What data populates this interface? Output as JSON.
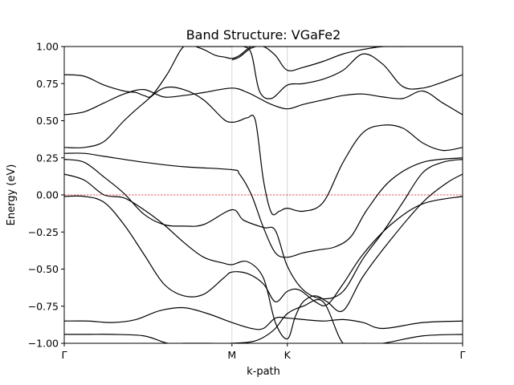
{
  "chart_data": {
    "type": "line",
    "title": "Band Structure: VGaFe2",
    "xlabel": "k-path",
    "ylabel": "Energy (eV)",
    "xlim": [
      0,
      1
    ],
    "ylim": [
      -1.0,
      1.0
    ],
    "yticks": [
      -1.0,
      -0.75,
      -0.5,
      -0.25,
      0.0,
      0.25,
      0.5,
      0.75,
      1.0
    ],
    "ytick_labels": [
      "−1.00",
      "−0.75",
      "−0.50",
      "−0.25",
      "0.00",
      "0.25",
      "0.50",
      "0.75",
      "1.00"
    ],
    "kpoints": [
      {
        "label": "Γ",
        "x": 0.0
      },
      {
        "label": "M",
        "x": 0.421
      },
      {
        "label": "K",
        "x": 0.56
      },
      {
        "label": "Γ",
        "x": 1.0
      }
    ],
    "fermi_level": 0.0,
    "series": [
      {
        "x": [
          0,
          0.06,
          0.12,
          0.2,
          0.26,
          0.3,
          0.36,
          0.421,
          0.47,
          0.5,
          0.53,
          0.56,
          0.6,
          0.65,
          0.7,
          0.75,
          0.8,
          0.9,
          1
        ],
        "values": [
          -0.94,
          -0.94,
          -0.94,
          -0.95,
          -1.0,
          -1.0,
          -1.0,
          -1.0,
          -0.99,
          -0.96,
          -0.9,
          -0.8,
          -0.75,
          -0.72,
          -1.0,
          -1.0,
          -1.0,
          -0.95,
          -0.94
        ]
      },
      {
        "x": [
          0,
          0.06,
          0.12,
          0.18,
          0.24,
          0.3,
          0.36,
          0.421,
          0.47,
          0.5,
          0.53,
          0.56,
          0.6,
          0.65,
          0.7,
          0.75,
          0.8,
          0.9,
          1
        ],
        "values": [
          -0.85,
          -0.85,
          -0.86,
          -0.84,
          -0.78,
          -0.76,
          -0.8,
          -0.86,
          -0.9,
          -0.9,
          -0.83,
          -0.83,
          -0.84,
          -0.85,
          -0.84,
          -0.86,
          -0.9,
          -0.86,
          -0.85
        ]
      },
      {
        "x": [
          0,
          0.05,
          0.1,
          0.15,
          0.2,
          0.25,
          0.3,
          0.35,
          0.4,
          0.421,
          0.46,
          0.5,
          0.53,
          0.56,
          0.59,
          0.63,
          0.66,
          0.7,
          0.75,
          0.82,
          0.9,
          1
        ],
        "values": [
          -0.01,
          -0.01,
          -0.05,
          -0.2,
          -0.4,
          -0.6,
          -0.68,
          -0.67,
          -0.56,
          -0.52,
          -0.53,
          -0.6,
          -0.72,
          -0.65,
          -0.64,
          -0.72,
          -0.74,
          -0.6,
          -0.4,
          -0.2,
          -0.06,
          -0.01
        ]
      },
      {
        "x": [
          0,
          0.05,
          0.1,
          0.15,
          0.2,
          0.25,
          0.3,
          0.35,
          0.4,
          0.421,
          0.46,
          0.5,
          0.53,
          0.56,
          0.58,
          0.6,
          0.63,
          0.66,
          0.7,
          0.75,
          0.82,
          0.9,
          0.96,
          1
        ],
        "values": [
          0.14,
          0.1,
          0.0,
          -0.02,
          -0.1,
          -0.2,
          -0.32,
          -0.42,
          -0.46,
          -0.47,
          -0.45,
          -0.56,
          -0.86,
          -0.97,
          -0.82,
          -0.72,
          -0.68,
          -0.72,
          -0.78,
          -0.55,
          -0.3,
          -0.05,
          0.08,
          0.14
        ]
      },
      {
        "x": [
          0,
          0.05,
          0.1,
          0.15,
          0.2,
          0.25,
          0.3,
          0.35,
          0.421,
          0.45,
          0.5,
          0.53,
          0.56,
          0.6,
          0.65,
          0.7,
          0.75,
          0.8,
          0.85,
          0.9,
          0.95,
          1
        ],
        "values": [
          0.24,
          0.22,
          0.12,
          0.01,
          -0.13,
          -0.2,
          -0.21,
          -0.2,
          -0.1,
          -0.17,
          -0.22,
          -0.24,
          -0.48,
          -0.64,
          -0.7,
          -0.65,
          -0.43,
          -0.25,
          -0.05,
          0.15,
          0.22,
          0.24
        ]
      },
      {
        "x": [
          0,
          0.05,
          0.1,
          0.2,
          0.3,
          0.421,
          0.44,
          0.47,
          0.5,
          0.53,
          0.56,
          0.6,
          0.64,
          0.68,
          0.72,
          0.76,
          0.82,
          0.9,
          1
        ],
        "values": [
          0.28,
          0.28,
          0.26,
          0.22,
          0.19,
          0.17,
          0.14,
          0.0,
          -0.22,
          -0.39,
          -0.42,
          -0.39,
          -0.37,
          -0.35,
          -0.28,
          -0.1,
          0.1,
          0.22,
          0.25
        ]
      },
      {
        "x": [
          0,
          0.05,
          0.1,
          0.15,
          0.2,
          0.25,
          0.3,
          0.35,
          0.4,
          0.421,
          0.44,
          0.46,
          0.48,
          0.5,
          0.52,
          0.54,
          0.56,
          0.6,
          0.65,
          0.7,
          0.75,
          0.8,
          0.85,
          0.9,
          0.95,
          1
        ],
        "values": [
          0.32,
          0.32,
          0.36,
          0.5,
          0.62,
          0.72,
          0.71,
          0.64,
          0.51,
          0.49,
          0.5,
          0.52,
          0.5,
          0.1,
          -0.12,
          -0.11,
          -0.09,
          -0.11,
          -0.05,
          0.22,
          0.42,
          0.47,
          0.45,
          0.35,
          0.3,
          0.32
        ]
      },
      {
        "x": [
          0,
          0.05,
          0.1,
          0.15,
          0.2,
          0.25,
          0.3,
          0.35,
          0.421,
          0.46,
          0.49,
          0.52,
          0.56,
          0.6,
          0.65,
          0.7,
          0.75,
          0.8,
          0.85,
          0.9,
          0.95,
          1
        ],
        "values": [
          0.54,
          0.56,
          0.62,
          0.68,
          0.71,
          0.66,
          0.67,
          0.69,
          0.72,
          0.69,
          0.65,
          0.61,
          0.58,
          0.61,
          0.64,
          0.67,
          0.68,
          0.66,
          0.65,
          0.7,
          0.62,
          0.54
        ]
      },
      {
        "x": [
          0,
          0.05,
          0.1,
          0.15,
          0.18,
          0.2,
          0.22,
          0.26,
          0.3,
          0.34,
          0.38,
          0.421,
          0.45,
          0.47,
          0.49,
          0.52,
          0.56,
          0.6,
          0.65,
          0.7,
          0.75,
          0.8,
          0.85,
          0.9,
          0.95,
          1
        ],
        "values": [
          0.81,
          0.8,
          0.74,
          0.7,
          0.69,
          0.67,
          0.67,
          0.82,
          1.0,
          1.0,
          1.0,
          1.0,
          1.0,
          0.95,
          0.7,
          0.65,
          0.74,
          0.75,
          0.78,
          0.84,
          0.95,
          0.88,
          0.73,
          0.72,
          0.76,
          0.81
        ]
      },
      {
        "x": [
          0.421,
          0.44,
          0.47,
          0.5,
          0.53,
          0.56,
          0.6,
          0.65,
          0.7,
          0.75,
          0.8,
          0.85
        ],
        "values": [
          0.91,
          0.93,
          0.99,
          1.0,
          0.94,
          0.84,
          0.86,
          0.9,
          0.95,
          0.98,
          1.0,
          1.0
        ]
      },
      {
        "x": [
          0.33,
          0.35,
          0.38,
          0.4,
          0.421,
          0.44,
          0.47,
          0.5,
          0.53,
          0.56,
          0.6,
          0.65,
          0.7,
          0.75,
          0.8,
          0.84,
          0.88,
          0.92,
          0.96,
          1
        ],
        "values": [
          1.0,
          0.98,
          0.94,
          0.93,
          0.92,
          0.94,
          1.0,
          1.0,
          1.0,
          1.0,
          1.0,
          1.0,
          1.0,
          1.0,
          1.0,
          1.0,
          1.0,
          1.0,
          1.0,
          1.0
        ]
      }
    ]
  }
}
